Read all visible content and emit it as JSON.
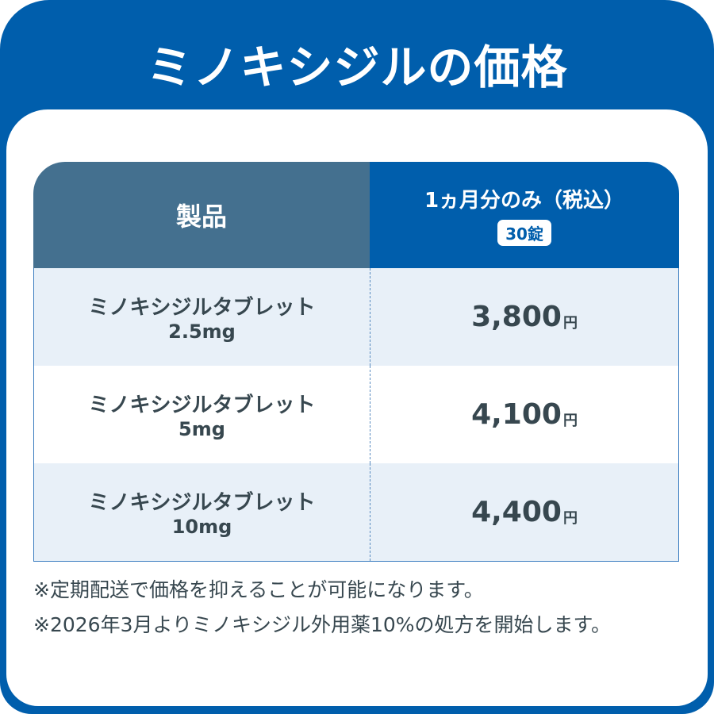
{
  "title": "ミノキシジルの価格",
  "table": {
    "header_product": "製品",
    "header_price": "1ヵ月分のみ（税込）",
    "header_badge": "30錠",
    "rows": [
      {
        "name": "ミノキシジルタブレット",
        "dose": "2.5mg",
        "price": "3,800",
        "unit": "円"
      },
      {
        "name": "ミノキシジルタブレット",
        "dose": "5mg",
        "price": "4,100",
        "unit": "円"
      },
      {
        "name": "ミノキシジルタブレット",
        "dose": "10mg",
        "price": "4,400",
        "unit": "円"
      }
    ]
  },
  "notes": [
    "※定期配送で価格を抑えることが可能になります。",
    "※2026年3月よりミノキシジル外用薬10%の処方を開始します。"
  ],
  "colors": {
    "brand": "#005eac",
    "header_left": "#44708f",
    "row_alt": "#e8f0f8",
    "text": "#37474f"
  }
}
